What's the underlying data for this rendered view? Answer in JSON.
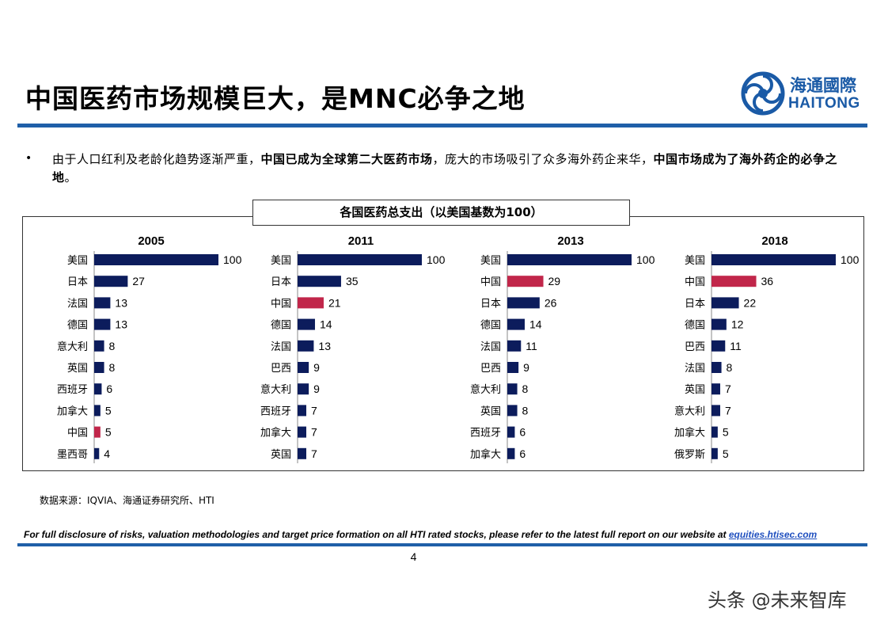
{
  "header": {
    "title": "中国医药市场规模巨大，是MNC必争之地",
    "logo_cn": "海通國際",
    "logo_en": "HAITONG"
  },
  "bullet": {
    "marker": "•",
    "part1": "由于人口红利及老龄化趋势逐渐严重，",
    "part2_bold": "中国已成为全球第二大医药市场",
    "part3": "，庞大的市场吸引了众多海外药企来华，",
    "part4_bold": "中国市场成为了海外药企的必争之地",
    "part5": "。"
  },
  "chart_title": "各国医药总支出（以美国基数为100）",
  "colors": {
    "default": "#0c1c5c",
    "highlight": "#c1264a"
  },
  "chart_data": [
    {
      "type": "bar",
      "orientation": "horizontal",
      "title": "2005",
      "categories": [
        "美国",
        "日本",
        "法国",
        "德国",
        "意大利",
        "英国",
        "西班牙",
        "加拿大",
        "中国",
        "墨西哥"
      ],
      "values": [
        100,
        27,
        13,
        13,
        8,
        8,
        6,
        5,
        5,
        4
      ],
      "highlight": [
        "中国"
      ],
      "xlim": [
        0,
        100
      ]
    },
    {
      "type": "bar",
      "orientation": "horizontal",
      "title": "2011",
      "categories": [
        "美国",
        "日本",
        "中国",
        "德国",
        "法国",
        "巴西",
        "意大利",
        "西班牙",
        "加拿大",
        "英国"
      ],
      "values": [
        100,
        35,
        21,
        14,
        13,
        9,
        9,
        7,
        7,
        7
      ],
      "highlight": [
        "中国"
      ],
      "xlim": [
        0,
        100
      ]
    },
    {
      "type": "bar",
      "orientation": "horizontal",
      "title": "2013",
      "categories": [
        "美国",
        "中国",
        "日本",
        "德国",
        "法国",
        "巴西",
        "意大利",
        "英国",
        "西班牙",
        "加拿大"
      ],
      "values": [
        100,
        29,
        26,
        14,
        11,
        9,
        8,
        8,
        6,
        6
      ],
      "highlight": [
        "中国"
      ],
      "xlim": [
        0,
        100
      ]
    },
    {
      "type": "bar",
      "orientation": "horizontal",
      "title": "2018",
      "categories": [
        "美国",
        "中国",
        "日本",
        "德国",
        "巴西",
        "法国",
        "英国",
        "意大利",
        "加拿大",
        "俄罗斯"
      ],
      "values": [
        100,
        36,
        22,
        12,
        11,
        8,
        7,
        7,
        5,
        5
      ],
      "highlight": [
        "中国"
      ],
      "xlim": [
        0,
        100
      ]
    }
  ],
  "source": "数据来源：IQVIA、海通证券研究所、HTI",
  "disclosure": {
    "text": "For full disclosure of risks, valuation methodologies and target price formation on all HTI rated stocks, please refer to the latest full report on our website at ",
    "link": "equities.htisec.com"
  },
  "page_number": "4",
  "watermark": "头条 @未来智库"
}
